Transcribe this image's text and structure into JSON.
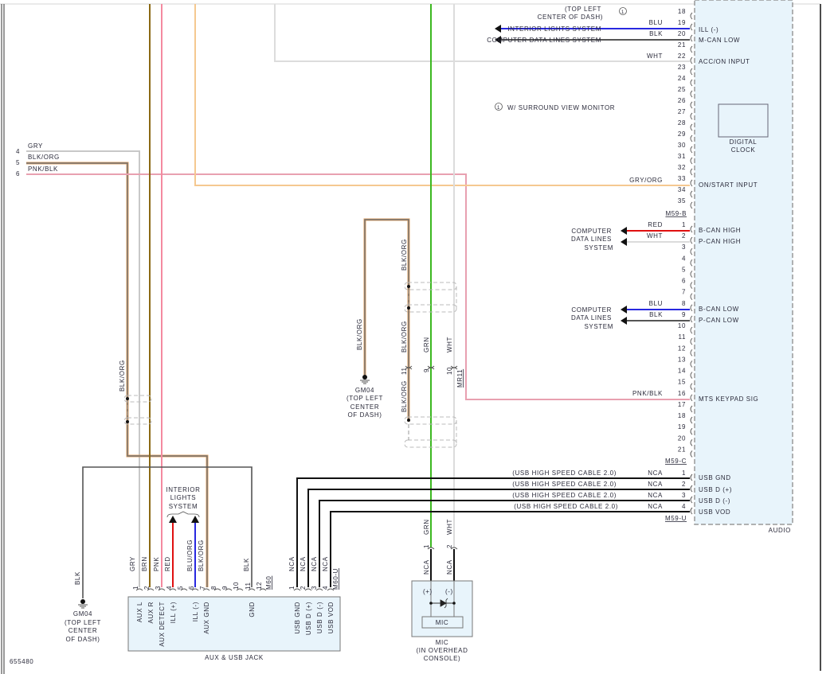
{
  "diagram_id": "655480",
  "colors": {
    "gry": "#c8c8c8",
    "brn": "#8b6914",
    "pnk": "#f48aa0",
    "pnk_blk": "#e8a0b0",
    "gry_org": "#f5c890",
    "wht": "#dcdcdc",
    "grn": "#3cb820",
    "blk": "#555555",
    "blk_org_core": "#707070",
    "blk_org_trace": "#e0a060",
    "red": "#e01010",
    "blu": "#2828e0",
    "nca": "#111111",
    "module_fill": "#e8f4fb"
  },
  "top_note": {
    "cut_label_1": "(TOP LEFT",
    "cut_label_2": "CENTER OF DASH)",
    "note_marker": "1",
    "note_text": "W/ SURROUND VIEW MONITOR"
  },
  "left_inputs": [
    {
      "pin": "4",
      "color": "GRY"
    },
    {
      "pin": "5",
      "color": "BLK/ORG"
    },
    {
      "pin": "6",
      "color": "PNK/BLK"
    }
  ],
  "audio": {
    "label": "AUDIO",
    "clock_line1": "DIGITAL",
    "clock_line2": "CLOCK",
    "pins_a": [
      "18",
      "19",
      "20",
      "21",
      "22",
      "23",
      "24",
      "25",
      "26",
      "27",
      "28",
      "29",
      "30",
      "31",
      "32",
      "33",
      "34",
      "35"
    ],
    "connector_b": "M59-B",
    "pins_b": [
      "1",
      "2",
      "3",
      "4",
      "5",
      "6",
      "7",
      "8",
      "9",
      "10",
      "11",
      "12",
      "13",
      "14",
      "15",
      "16",
      "17",
      "18",
      "19",
      "20",
      "21"
    ],
    "connector_c": "M59-C",
    "pins_c": [
      "1",
      "2",
      "3",
      "4"
    ],
    "connector_u": "M59-U",
    "circuits": {
      "a19": {
        "color": "BLU",
        "function": "ILL (-)",
        "destination": "INTERIOR LIGHTS SYSTEM"
      },
      "a20": {
        "color": "BLK",
        "function": "M-CAN LOW",
        "destination": "COMPUTER DATA LINES SYSTEM"
      },
      "a22": {
        "color": "WHT",
        "function": "ACC/ON INPUT"
      },
      "a33": {
        "color": "GRY/ORG",
        "function": "ON/START INPUT"
      },
      "b1": {
        "color": "RED",
        "function": "B-CAN HIGH"
      },
      "b2": {
        "color": "WHT",
        "function": "P-CAN HIGH"
      },
      "b8": {
        "color": "BLU",
        "function": "B-CAN LOW"
      },
      "b9": {
        "color": "BLK",
        "function": "P-CAN LOW"
      },
      "b16": {
        "color": "PNK/BLK",
        "function": "MTS KEYPAD SIG"
      },
      "c1": {
        "color": "NCA",
        "cable": "(USB HIGH SPEED CABLE 2.0)",
        "function": "USB GND"
      },
      "c2": {
        "color": "NCA",
        "cable": "(USB HIGH SPEED CABLE 2.0)",
        "function": "USB D (+)"
      },
      "c3": {
        "color": "NCA",
        "cable": "(USB HIGH SPEED CABLE 2.0)",
        "function": "USB D (-)"
      },
      "c4": {
        "color": "NCA",
        "cable": "(USB HIGH SPEED CABLE 2.0)",
        "function": "USB VOD"
      }
    },
    "can_dest_line1": "COMPUTER",
    "can_dest_line2": "DATA LINES",
    "can_dest_line3": "SYSTEM"
  },
  "mr11": {
    "connector": "MR11",
    "pins": [
      "11",
      "9",
      "10"
    ],
    "colors": [
      "BLK/ORG",
      "GRN",
      "WHT"
    ],
    "upper_label": "BLK/ORG",
    "lower_label": "BLK/ORG",
    "ground_wire": "BLK/ORG"
  },
  "ground_mid": {
    "name": "GM04",
    "line1": "(TOP LEFT",
    "line2": "CENTER",
    "line3": "OF DASH)"
  },
  "ground_left": {
    "name": "GM04",
    "line1": "(TOP LEFT",
    "line2": "CENTER",
    "line3": "OF DASH)",
    "wire": "BLK"
  },
  "left_splice_label": "BLK/ORG",
  "interior_lights": {
    "line1": "INTERIOR",
    "line2": "LIGHTS",
    "line3": "SYSTEM"
  },
  "jack": {
    "label": "AUX & USB JACK",
    "connector": "M60",
    "usb_connector": "M60-U",
    "pins": [
      "1",
      "2",
      "3",
      "4",
      "5",
      "6",
      "7",
      "8",
      "9",
      "10",
      "11",
      "12"
    ],
    "wire_colors": [
      "GRY",
      "BRN",
      "PNK",
      "RED",
      "BLU/ORG",
      "BLK/ORG",
      "BLK"
    ],
    "functions": [
      "AUX L",
      "AUX R",
      "AUX DETECT",
      "ILL (+)",
      "ILL (-)",
      "AUX GND",
      "GND"
    ],
    "usb_pins": [
      "1",
      "2",
      "3",
      "4"
    ],
    "usb_colors": [
      "NCA",
      "NCA",
      "NCA",
      "NCA"
    ],
    "usb_functions": [
      "USB GND",
      "USB D (+)",
      "USB D (-)",
      "USB VOD"
    ]
  },
  "mic": {
    "label": "MIC",
    "location_1": "(IN OVERHEAD",
    "location_2": "CONSOLE)",
    "inner_label": "MIC",
    "plus": "(+)",
    "minus": "(-)",
    "pins": [
      "1",
      "2"
    ],
    "wire_colors": [
      "GRN",
      "WHT"
    ],
    "internal": [
      "NCA",
      "NCA"
    ]
  }
}
